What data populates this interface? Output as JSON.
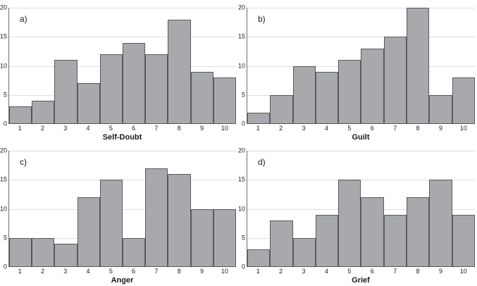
{
  "figure": {
    "kind": "2x2-histogram-panel",
    "colors": {
      "bar_fill": "#a8a9ac",
      "bar_border": "#58595b",
      "gridline": "#dedede",
      "axis": "#6b6b6d",
      "text": "#1a1a1a",
      "background": "#ffffff"
    }
  },
  "chart_data": [
    {
      "type": "bar",
      "panel_label": "a)",
      "title": "Self-Doubt",
      "xlabel": "Self-Doubt",
      "ylabel": "",
      "categories": [
        "1",
        "2",
        "3",
        "4",
        "5",
        "6",
        "7",
        "8",
        "9",
        "10"
      ],
      "values": [
        3,
        4,
        11,
        7,
        12,
        14,
        12,
        18,
        9,
        8
      ],
      "ylim": [
        0,
        20
      ],
      "yticks": [
        0,
        5,
        10,
        15,
        20
      ],
      "grid": true,
      "legend": false
    },
    {
      "type": "bar",
      "panel_label": "b)",
      "title": "Guilt",
      "xlabel": "Guilt",
      "ylabel": "",
      "categories": [
        "1",
        "2",
        "3",
        "4",
        "5",
        "6",
        "7",
        "8",
        "9",
        "10"
      ],
      "values": [
        2,
        5,
        10,
        9,
        11,
        13,
        15,
        20,
        5,
        8
      ],
      "ylim": [
        0,
        20
      ],
      "yticks": [
        0,
        5,
        10,
        15,
        20
      ],
      "grid": true,
      "legend": false
    },
    {
      "type": "bar",
      "panel_label": "c)",
      "title": "Anger",
      "xlabel": "Anger",
      "ylabel": "",
      "categories": [
        "1",
        "2",
        "3",
        "4",
        "5",
        "6",
        "7",
        "8",
        "9",
        "10"
      ],
      "values": [
        5,
        5,
        4,
        12,
        15,
        5,
        17,
        16,
        10,
        10
      ],
      "ylim": [
        0,
        20
      ],
      "yticks": [
        0,
        5,
        10,
        15,
        20
      ],
      "grid": true,
      "legend": false
    },
    {
      "type": "bar",
      "panel_label": "d)",
      "title": "Grief",
      "xlabel": "Grief",
      "ylabel": "",
      "categories": [
        "1",
        "2",
        "3",
        "4",
        "5",
        "6",
        "7",
        "8",
        "9",
        "10"
      ],
      "values": [
        3,
        8,
        5,
        9,
        15,
        12,
        9,
        12,
        15,
        9
      ],
      "ylim": [
        0,
        20
      ],
      "yticks": [
        0,
        5,
        10,
        15,
        20
      ],
      "grid": true,
      "legend": false
    }
  ]
}
